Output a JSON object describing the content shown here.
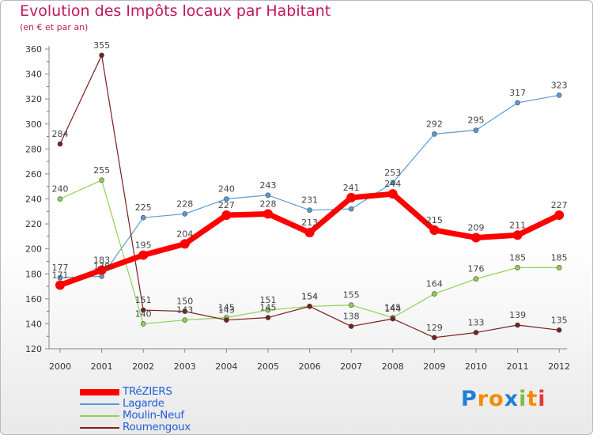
{
  "header": {
    "title": "Evolution des Impôts locaux par Habitant",
    "subtitle": "(en € et par an)"
  },
  "logo": {
    "text": "Proxiti",
    "letters": [
      "P",
      "r",
      "o",
      "x",
      "i",
      "t",
      "i"
    ]
  },
  "chart_data": {
    "type": "line",
    "title": "Evolution des Impôts locaux par Habitant",
    "subtitle": "(en € et par an)",
    "xlabel": "",
    "ylabel": "",
    "x": [
      "2000",
      "2001",
      "2002",
      "2003",
      "2004",
      "2005",
      "2006",
      "2007",
      "2008",
      "2009",
      "2010",
      "2011",
      "2012"
    ],
    "ylim": [
      120,
      360
    ],
    "yticks": [
      120,
      140,
      160,
      180,
      200,
      220,
      240,
      260,
      280,
      300,
      320,
      340,
      360
    ],
    "grid": false,
    "legend_position": "bottom-left",
    "series": [
      {
        "name": "Lagarde",
        "color": "#5a9bd4",
        "values": [
          177,
          178,
          225,
          228,
          240,
          243,
          231,
          232,
          253,
          292,
          295,
          317,
          323
        ],
        "labels": [
          "177",
          "178",
          "225",
          "228",
          "240",
          "243",
          "231",
          "",
          "253",
          "292",
          "295",
          "317",
          "323"
        ]
      },
      {
        "name": "Moulin-Neuf",
        "color": "#8fd14f",
        "values": [
          240,
          255,
          140,
          143,
          145,
          151,
          154,
          155,
          145,
          164,
          176,
          185,
          185
        ],
        "labels": [
          "240",
          "255",
          "140",
          "143",
          "145",
          "151",
          "154",
          "155",
          "145",
          "164",
          "176",
          "185",
          "185"
        ]
      },
      {
        "name": "Roumengoux",
        "color": "#7a1f1f",
        "values": [
          284,
          355,
          151,
          150,
          143,
          145,
          154,
          138,
          144,
          129,
          133,
          139,
          135
        ],
        "labels": [
          "284",
          "355",
          "151",
          "150",
          "143",
          "145",
          "154",
          "138",
          "144",
          "129",
          "133",
          "139",
          "135"
        ]
      },
      {
        "name": "TRéZIERS",
        "color": "#ff0000",
        "values": [
          171,
          183,
          195,
          204,
          227,
          228,
          213,
          241,
          244,
          215,
          209,
          211,
          227
        ],
        "labels": [
          "171",
          "183",
          "195",
          "204",
          "227",
          "228",
          "213",
          "241",
          "244",
          "215",
          "209",
          "211",
          "227"
        ]
      }
    ],
    "legend_order": [
      "TRéZIERS",
      "Lagarde",
      "Moulin-Neuf",
      "Roumengoux"
    ]
  }
}
